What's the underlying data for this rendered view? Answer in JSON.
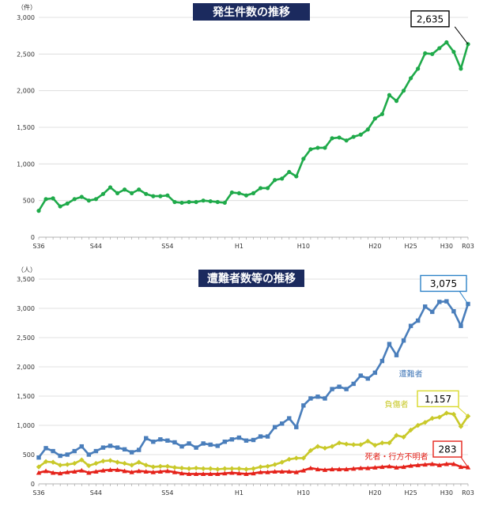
{
  "chart_data": [
    {
      "type": "line",
      "title": "発生件数の推移",
      "unit": "（件）",
      "ylim": [
        0,
        3000
      ],
      "yticks": [
        "0",
        "500",
        "1,000",
        "1,500",
        "2,000",
        "2,500",
        "3,000"
      ],
      "ytick_values": [
        0,
        500,
        1000,
        1500,
        2000,
        2500,
        3000
      ],
      "x_labels": [
        {
          "index": 0,
          "label": "S36"
        },
        {
          "index": 8,
          "label": "S44"
        },
        {
          "index": 18,
          "label": "S54"
        },
        {
          "index": 28,
          "label": "H1"
        },
        {
          "index": 37,
          "label": "H10"
        },
        {
          "index": 47,
          "label": "H20"
        },
        {
          "index": 52,
          "label": "H25"
        },
        {
          "index": 57,
          "label": "H30"
        },
        {
          "index": 60,
          "label": "R03"
        }
      ],
      "grid": true,
      "series": [
        {
          "color": "#1faa4a",
          "marker": "circle",
          "values": [
            360,
            520,
            530,
            420,
            460,
            520,
            550,
            500,
            520,
            590,
            680,
            600,
            650,
            600,
            650,
            590,
            560,
            560,
            570,
            480,
            470,
            480,
            480,
            500,
            490,
            480,
            470,
            610,
            600,
            570,
            600,
            670,
            670,
            780,
            800,
            890,
            830,
            1070,
            1200,
            1220,
            1220,
            1350,
            1360,
            1320,
            1370,
            1400,
            1470,
            1620,
            1680,
            1940,
            1860,
            2000,
            2170,
            2300,
            2510,
            2500,
            2580,
            2660,
            2530,
            2300,
            2635
          ],
          "end_label": "2,635"
        }
      ]
    },
    {
      "type": "line",
      "title": "遭難者数等の推移",
      "unit": "（人）",
      "ylim": [
        0,
        3500
      ],
      "yticks": [
        "0",
        "500",
        "1,000",
        "1,500",
        "2,000",
        "2,500",
        "3,000",
        "3,500"
      ],
      "ytick_values": [
        0,
        500,
        1000,
        1500,
        2000,
        2500,
        3000,
        3500
      ],
      "x_labels": [
        {
          "index": 0,
          "label": "S36"
        },
        {
          "index": 8,
          "label": "S44"
        },
        {
          "index": 18,
          "label": "S54"
        },
        {
          "index": 28,
          "label": "H1"
        },
        {
          "index": 37,
          "label": "H10"
        },
        {
          "index": 47,
          "label": "H20"
        },
        {
          "index": 52,
          "label": "H25"
        },
        {
          "index": 57,
          "label": "H30"
        },
        {
          "index": 60,
          "label": "R03"
        }
      ],
      "grid": true,
      "series": [
        {
          "name": "遭難者",
          "color": "#4a7ebb",
          "marker": "square",
          "values": [
            450,
            610,
            560,
            480,
            500,
            560,
            640,
            500,
            560,
            620,
            650,
            620,
            590,
            540,
            580,
            780,
            720,
            760,
            740,
            710,
            640,
            690,
            620,
            690,
            670,
            650,
            720,
            760,
            790,
            740,
            750,
            810,
            810,
            970,
            1030,
            1120,
            970,
            1340,
            1460,
            1490,
            1460,
            1620,
            1660,
            1620,
            1710,
            1850,
            1800,
            1900,
            2100,
            2390,
            2200,
            2450,
            2700,
            2790,
            3030,
            2940,
            3110,
            3120,
            2950,
            2700,
            3075
          ],
          "end_label": "3,075",
          "label_index": 52,
          "label_value": 1830
        },
        {
          "name": "負傷者",
          "color": "#c9c92a",
          "marker": "diamond",
          "values": [
            290,
            380,
            370,
            320,
            330,
            350,
            410,
            310,
            350,
            390,
            400,
            370,
            350,
            320,
            370,
            320,
            290,
            300,
            300,
            280,
            270,
            260,
            270,
            260,
            260,
            250,
            260,
            260,
            260,
            250,
            260,
            290,
            300,
            330,
            370,
            420,
            440,
            440,
            570,
            640,
            610,
            640,
            700,
            680,
            670,
            670,
            730,
            660,
            700,
            700,
            830,
            800,
            920,
            1000,
            1050,
            1120,
            1140,
            1210,
            1190,
            980,
            1157
          ],
          "end_label": "1,157",
          "label_index": 50,
          "label_value": 1310
        },
        {
          "name": "死者・行方不明者",
          "color": "#e5231b",
          "marker": "triangle",
          "values": [
            190,
            220,
            190,
            180,
            200,
            210,
            230,
            190,
            210,
            230,
            240,
            240,
            220,
            200,
            220,
            210,
            200,
            210,
            220,
            200,
            180,
            170,
            170,
            170,
            170,
            170,
            180,
            190,
            180,
            170,
            180,
            200,
            200,
            210,
            210,
            210,
            200,
            230,
            270,
            250,
            240,
            250,
            250,
            250,
            260,
            270,
            270,
            280,
            290,
            300,
            280,
            290,
            310,
            320,
            330,
            340,
            320,
            340,
            340,
            290,
            283
          ],
          "end_label": "283",
          "label_index": 50,
          "label_value": 420
        }
      ]
    }
  ]
}
